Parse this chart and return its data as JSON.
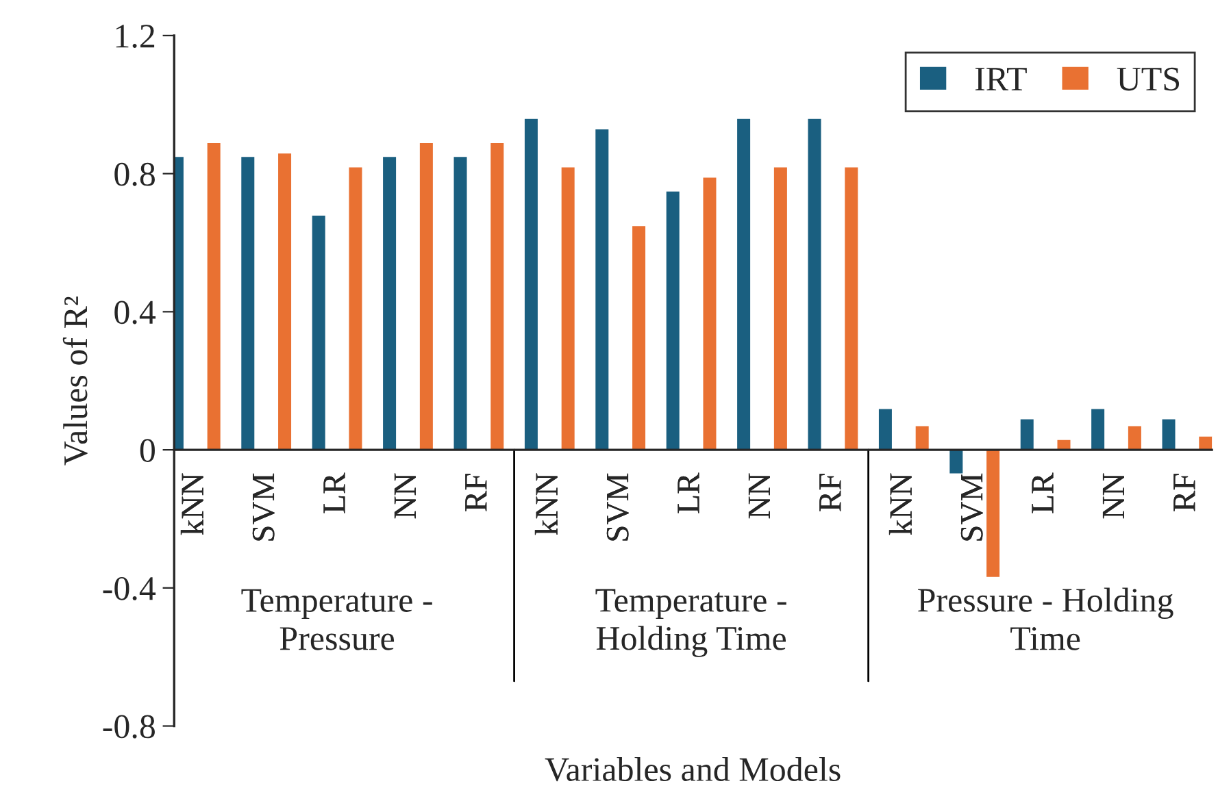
{
  "chart_data": {
    "type": "bar",
    "xlabel": "Variables and Models",
    "ylabel": "Values of R²",
    "categories": [
      "kNN",
      "SVM",
      "LR",
      "NN",
      "RF",
      "kNN",
      "SVM",
      "LR",
      "NN",
      "RF",
      "kNN",
      "SVM",
      "LR",
      "NN",
      "RF"
    ],
    "series": [
      {
        "name": "IRT",
        "color": "#1a5f80",
        "values": [
          0.85,
          0.85,
          0.68,
          0.85,
          0.85,
          0.96,
          0.93,
          0.75,
          0.96,
          0.96,
          0.12,
          -0.07,
          0.09,
          0.12,
          0.09
        ]
      },
      {
        "name": "UTS",
        "color": "#e97132",
        "values": [
          0.89,
          0.86,
          0.82,
          0.89,
          0.89,
          0.82,
          0.65,
          0.79,
          0.82,
          0.82,
          0.07,
          -0.37,
          0.03,
          0.07,
          0.04
        ]
      }
    ],
    "annotations": [
      "Temperature -\nPressure",
      "Temperature -\nHolding Time",
      "Pressure - Holding\nTime"
    ],
    "ylim": [
      -0.8,
      1.2
    ],
    "yticks": [
      -0.8,
      -0.4,
      0,
      0.4,
      0.8,
      1.2
    ],
    "grid": false,
    "legend": "top right"
  }
}
